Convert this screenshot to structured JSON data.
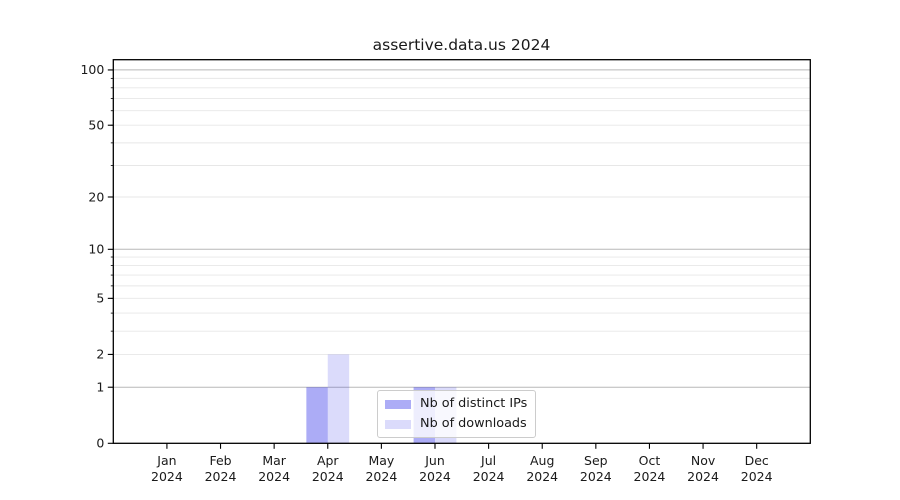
{
  "title": "assertive.data.us 2024",
  "chart_data": {
    "type": "bar",
    "categories": [
      "Jan",
      "Feb",
      "Mar",
      "Apr",
      "May",
      "Jun",
      "Jul",
      "Aug",
      "Sep",
      "Oct",
      "Nov",
      "Dec"
    ],
    "year_label": "2024",
    "series": [
      {
        "name": "Nb of distinct IPs",
        "color": "rgba(30,30,230,0.37)",
        "values": [
          0,
          0,
          0,
          1,
          0,
          1,
          0,
          0,
          0,
          0,
          0,
          0
        ]
      },
      {
        "name": "Nb of downloads",
        "color": "rgba(30,30,230,0.16)",
        "values": [
          0,
          0,
          0,
          2,
          0,
          1,
          0,
          0,
          0,
          0,
          0,
          0
        ]
      }
    ],
    "yscale": "log1p",
    "ylim": [
      0,
      113
    ],
    "yticks": [
      0,
      1,
      2,
      5,
      10,
      20,
      50,
      100
    ],
    "grid_major": [
      1,
      10,
      100
    ],
    "grid_minor": [
      2,
      3,
      4,
      5,
      6,
      7,
      8,
      9,
      20,
      30,
      40,
      50,
      60,
      70,
      80,
      90
    ],
    "grid": true,
    "legend_position": "lower center-left",
    "colors": {
      "grid_major": "#b8b8b8",
      "grid_minor": "#e7e7e7",
      "spine": "#000000",
      "text": "#1a1a1a"
    }
  }
}
